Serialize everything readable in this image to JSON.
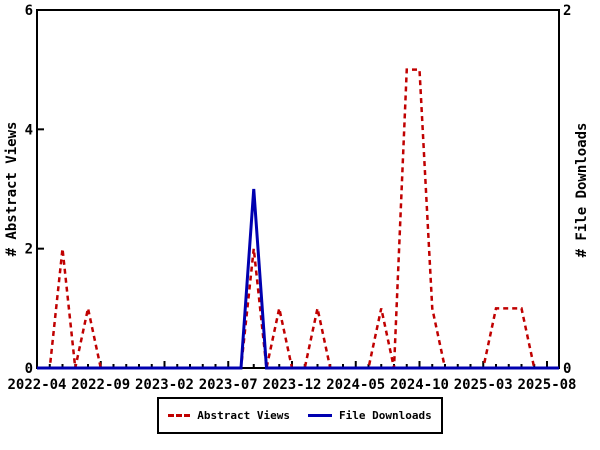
{
  "chart_data": {
    "type": "line",
    "title": "",
    "categories": [
      "2022-04",
      "2022-05",
      "2022-06",
      "2022-07",
      "2022-08",
      "2022-09",
      "2022-10",
      "2022-11",
      "2022-12",
      "2023-01",
      "2023-02",
      "2023-03",
      "2023-04",
      "2023-05",
      "2023-06",
      "2023-07",
      "2023-08",
      "2023-09",
      "2023-10",
      "2023-11",
      "2023-12",
      "2024-01",
      "2024-02",
      "2024-03",
      "2024-04",
      "2024-05",
      "2024-06",
      "2024-07",
      "2024-08",
      "2024-09",
      "2024-10",
      "2024-11",
      "2024-12",
      "2025-01",
      "2025-02",
      "2025-03",
      "2025-04",
      "2025-05",
      "2025-06",
      "2025-07",
      "2025-08"
    ],
    "series": [
      {
        "name": "Abstract Views",
        "axis": "left",
        "color": "#c00000",
        "line_style": "dashed",
        "values": [
          0,
          0,
          2,
          0,
          1,
          0,
          0,
          0,
          0,
          0,
          0,
          0,
          0,
          0,
          0,
          0,
          0,
          2,
          0,
          1,
          0,
          0,
          1,
          0,
          0,
          0,
          0,
          1,
          0,
          5,
          5,
          1,
          0,
          0,
          0,
          0,
          1,
          1,
          1,
          0,
          0
        ]
      },
      {
        "name": "File Downloads",
        "axis": "right",
        "color": "#0000b0",
        "line_style": "solid",
        "values": [
          0,
          0,
          0,
          0,
          0,
          0,
          0,
          0,
          0,
          0,
          0,
          0,
          0,
          0,
          0,
          0,
          0,
          1,
          0,
          0,
          0,
          0,
          0,
          0,
          0,
          0,
          0,
          0,
          0,
          0,
          0,
          0,
          0,
          0,
          0,
          0,
          0,
          0,
          0,
          0,
          0
        ]
      }
    ],
    "x_ticklabels": [
      "2022-04",
      "2022-09",
      "2023-02",
      "2023-07",
      "2023-12",
      "2024-05",
      "2024-10",
      "2025-03",
      "2025-08"
    ],
    "x_label_every_n_months": 5,
    "left_axis": {
      "label": "# Abstract Views",
      "min": 0,
      "max": 6,
      "ticks": [
        0,
        2,
        4,
        6
      ]
    },
    "right_axis": {
      "label": "# File Downloads",
      "min": 0,
      "max": 2,
      "ticks": [
        0,
        2
      ]
    },
    "grid": false,
    "legend_position": "bottom"
  },
  "legend": {
    "items": [
      {
        "label": "Abstract Views",
        "color": "#c00000",
        "style": "dashed"
      },
      {
        "label": "File Downloads",
        "color": "#0000b0",
        "style": "solid"
      }
    ]
  },
  "colors": {
    "abstract_views": "#c00000",
    "file_downloads": "#0000b0",
    "axis": "#000000",
    "background": "#ffffff"
  }
}
